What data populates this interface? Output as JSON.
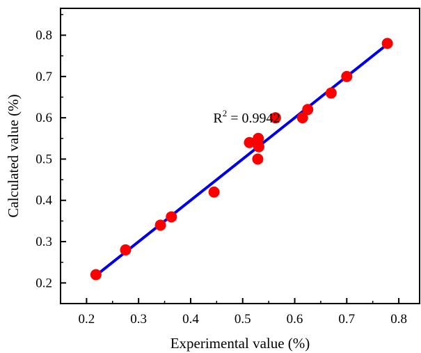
{
  "chart_data": {
    "type": "scatter",
    "xlabel": "Experimental value (%)",
    "ylabel": "Calculated value (%)",
    "xlim": [
      0.15,
      0.84
    ],
    "ylim": [
      0.15,
      0.865
    ],
    "xticks": [
      0.2,
      0.3,
      0.4,
      0.5,
      0.6,
      0.7,
      0.8
    ],
    "yticks": [
      0.2,
      0.3,
      0.4,
      0.5,
      0.6,
      0.7,
      0.8
    ],
    "xtick_labels": [
      "0.2",
      "0.3",
      "0.4",
      "0.5",
      "0.6",
      "0.7",
      "0.8"
    ],
    "ytick_labels": [
      "0.2",
      "0.3",
      "0.4",
      "0.5",
      "0.6",
      "0.7",
      "0.8"
    ],
    "grid": false,
    "points": [
      {
        "x": 0.218,
        "y": 0.22
      },
      {
        "x": 0.275,
        "y": 0.28
      },
      {
        "x": 0.342,
        "y": 0.34
      },
      {
        "x": 0.363,
        "y": 0.36
      },
      {
        "x": 0.445,
        "y": 0.42
      },
      {
        "x": 0.513,
        "y": 0.54
      },
      {
        "x": 0.53,
        "y": 0.55
      },
      {
        "x": 0.531,
        "y": 0.53
      },
      {
        "x": 0.529,
        "y": 0.5
      },
      {
        "x": 0.563,
        "y": 0.6
      },
      {
        "x": 0.615,
        "y": 0.6
      },
      {
        "x": 0.625,
        "y": 0.62
      },
      {
        "x": 0.67,
        "y": 0.66
      },
      {
        "x": 0.7,
        "y": 0.7
      },
      {
        "x": 0.778,
        "y": 0.78
      }
    ],
    "fit_line": {
      "x": [
        0.218,
        0.778
      ],
      "y": [
        0.218,
        0.778
      ]
    },
    "annotation": {
      "base": "R",
      "sup": "2",
      "rest": " = 0.9942",
      "x": 0.545,
      "y": 0.6
    },
    "colors": {
      "points": "#ff0000",
      "line": "#0000e6",
      "axis": "#000000"
    }
  }
}
